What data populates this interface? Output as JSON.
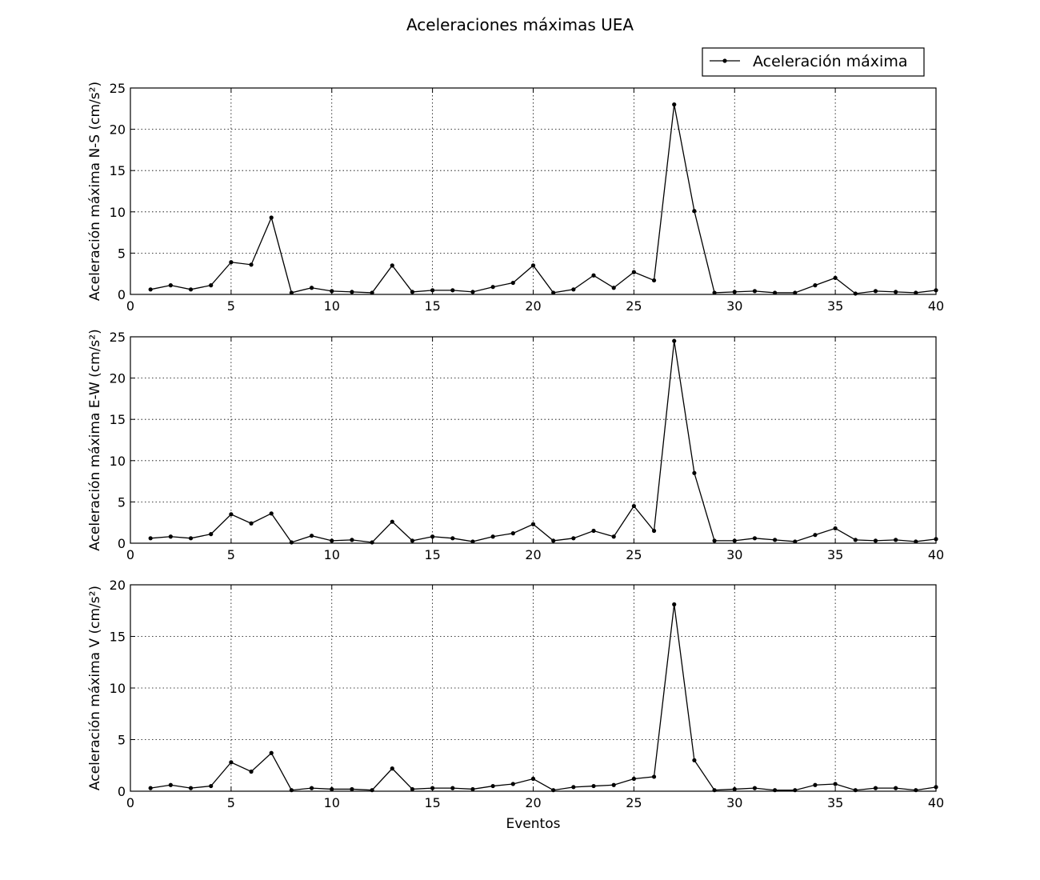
{
  "figure": {
    "title": "Aceleraciones máximas UEA",
    "legend": {
      "label": "Aceleración máxima",
      "placement": "upper-right",
      "marker": "dot",
      "color": "#000000"
    }
  },
  "chart_data": [
    {
      "type": "line",
      "title": "",
      "xlabel": "",
      "ylabel": "Aceleración máxima N-S (cm/s²)",
      "xlim": [
        0,
        40
      ],
      "ylim": [
        0,
        25
      ],
      "xticks": [
        0,
        5,
        10,
        15,
        20,
        25,
        30,
        35,
        40
      ],
      "xtick_labels": [
        "0",
        "5",
        "10",
        "15",
        "20",
        "25",
        "30",
        "35",
        "40"
      ],
      "yticks": [
        0,
        5,
        10,
        15,
        20,
        25
      ],
      "ytick_labels": [
        "0",
        "5",
        "10",
        "15",
        "20",
        "25"
      ],
      "grid": true,
      "x": [
        1,
        2,
        3,
        4,
        5,
        6,
        7,
        8,
        9,
        10,
        11,
        12,
        13,
        14,
        15,
        16,
        17,
        18,
        19,
        20,
        21,
        22,
        23,
        24,
        25,
        26,
        27,
        28,
        29,
        30,
        31,
        32,
        33,
        34,
        35,
        36,
        37,
        38,
        39,
        40
      ],
      "series": [
        {
          "name": "Aceleración máxima",
          "color": "#000000",
          "values": [
            0.6,
            1.1,
            0.6,
            1.1,
            3.9,
            3.6,
            9.3,
            0.2,
            0.8,
            0.4,
            0.3,
            0.2,
            3.5,
            0.3,
            0.5,
            0.5,
            0.3,
            0.9,
            1.4,
            3.5,
            0.2,
            0.6,
            2.3,
            0.8,
            2.7,
            1.7,
            23.0,
            10.1,
            0.2,
            0.3,
            0.4,
            0.2,
            0.2,
            1.1,
            2.0,
            0.1,
            0.4,
            0.3,
            0.2,
            0.5
          ]
        }
      ]
    },
    {
      "type": "line",
      "title": "",
      "xlabel": "",
      "ylabel": "Aceleración máxima E-W (cm/s²)",
      "xlim": [
        0,
        40
      ],
      "ylim": [
        0,
        25
      ],
      "xticks": [
        0,
        5,
        10,
        15,
        20,
        25,
        30,
        35,
        40
      ],
      "xtick_labels": [
        "0",
        "5",
        "10",
        "15",
        "20",
        "25",
        "30",
        "35",
        "40"
      ],
      "yticks": [
        0,
        5,
        10,
        15,
        20,
        25
      ],
      "ytick_labels": [
        "0",
        "5",
        "10",
        "15",
        "20",
        "25"
      ],
      "grid": true,
      "x": [
        1,
        2,
        3,
        4,
        5,
        6,
        7,
        8,
        9,
        10,
        11,
        12,
        13,
        14,
        15,
        16,
        17,
        18,
        19,
        20,
        21,
        22,
        23,
        24,
        25,
        26,
        27,
        28,
        29,
        30,
        31,
        32,
        33,
        34,
        35,
        36,
        37,
        38,
        39,
        40
      ],
      "series": [
        {
          "name": "Aceleración máxima",
          "color": "#000000",
          "values": [
            0.6,
            0.8,
            0.6,
            1.1,
            3.5,
            2.4,
            3.6,
            0.1,
            0.9,
            0.3,
            0.4,
            0.1,
            2.6,
            0.3,
            0.8,
            0.6,
            0.2,
            0.8,
            1.2,
            2.3,
            0.3,
            0.6,
            1.5,
            0.8,
            4.5,
            1.5,
            24.5,
            8.5,
            0.3,
            0.3,
            0.6,
            0.4,
            0.2,
            1.0,
            1.8,
            0.4,
            0.3,
            0.4,
            0.2,
            0.5
          ]
        }
      ]
    },
    {
      "type": "line",
      "title": "",
      "xlabel": "Eventos",
      "ylabel": "Aceleración máxima V (cm/s²)",
      "xlim": [
        0,
        40
      ],
      "ylim": [
        0,
        20
      ],
      "xticks": [
        0,
        5,
        10,
        15,
        20,
        25,
        30,
        35,
        40
      ],
      "xtick_labels": [
        "0",
        "5",
        "10",
        "15",
        "20",
        "25",
        "30",
        "35",
        "40"
      ],
      "yticks": [
        0,
        5,
        10,
        15,
        20
      ],
      "ytick_labels": [
        "0",
        "5",
        "10",
        "15",
        "20"
      ],
      "grid": true,
      "x": [
        1,
        2,
        3,
        4,
        5,
        6,
        7,
        8,
        9,
        10,
        11,
        12,
        13,
        14,
        15,
        16,
        17,
        18,
        19,
        20,
        21,
        22,
        23,
        24,
        25,
        26,
        27,
        28,
        29,
        30,
        31,
        32,
        33,
        34,
        35,
        36,
        37,
        38,
        39,
        40
      ],
      "series": [
        {
          "name": "Aceleración máxima",
          "color": "#000000",
          "values": [
            0.3,
            0.6,
            0.3,
            0.5,
            2.8,
            1.9,
            3.7,
            0.1,
            0.3,
            0.2,
            0.2,
            0.1,
            2.2,
            0.2,
            0.3,
            0.3,
            0.2,
            0.5,
            0.7,
            1.2,
            0.1,
            0.4,
            0.5,
            0.6,
            1.2,
            1.4,
            18.1,
            3.0,
            0.1,
            0.2,
            0.3,
            0.1,
            0.1,
            0.6,
            0.7,
            0.1,
            0.3,
            0.3,
            0.1,
            0.4
          ]
        }
      ]
    }
  ]
}
